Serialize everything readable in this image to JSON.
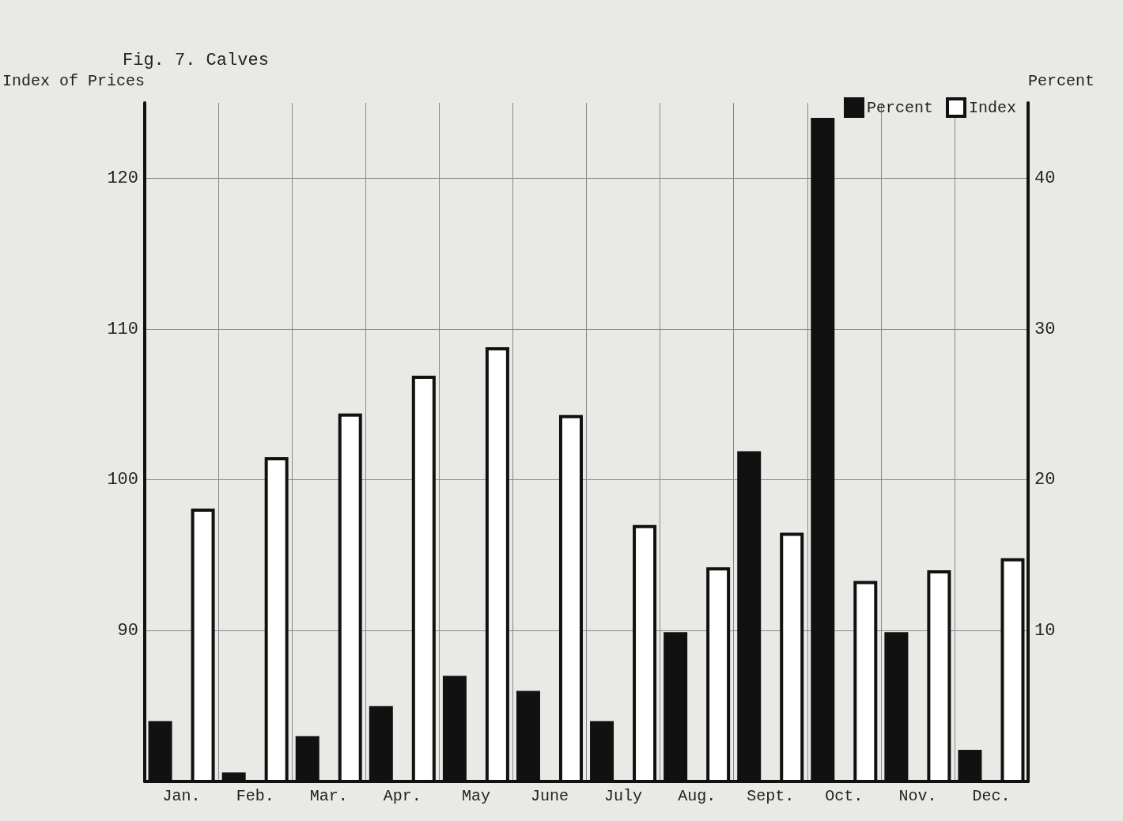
{
  "chart_data": {
    "type": "bar",
    "title": "Fig. 7. Calves",
    "ylabel": "Index of Prices",
    "y2label": "Percent",
    "categories": [
      "Jan.",
      "Feb.",
      "Mar.",
      "Apr.",
      "May",
      "June",
      "July",
      "Aug.",
      "Sept.",
      "Oct.",
      "Nov.",
      "Dec."
    ],
    "series": [
      {
        "name": "Percent",
        "color": "#111111",
        "axis": "y2",
        "values": [
          4.0,
          0.6,
          3.0,
          5.0,
          7.0,
          6.0,
          4.0,
          9.9,
          21.9,
          44.0,
          9.9,
          2.1
        ]
      },
      {
        "name": "Index",
        "color": "#ffffff",
        "values": [
          98.1,
          101.5,
          104.4,
          106.9,
          108.8,
          104.3,
          97.0,
          94.2,
          96.5,
          93.3,
          94.0,
          94.8
        ]
      }
    ],
    "ylim": [
      80,
      125
    ],
    "yticks": [
      90,
      100,
      110,
      120
    ],
    "y2lim": [
      0,
      45
    ],
    "y2ticks": [
      10,
      20,
      30,
      40
    ],
    "grid": true,
    "legend": "top right"
  }
}
